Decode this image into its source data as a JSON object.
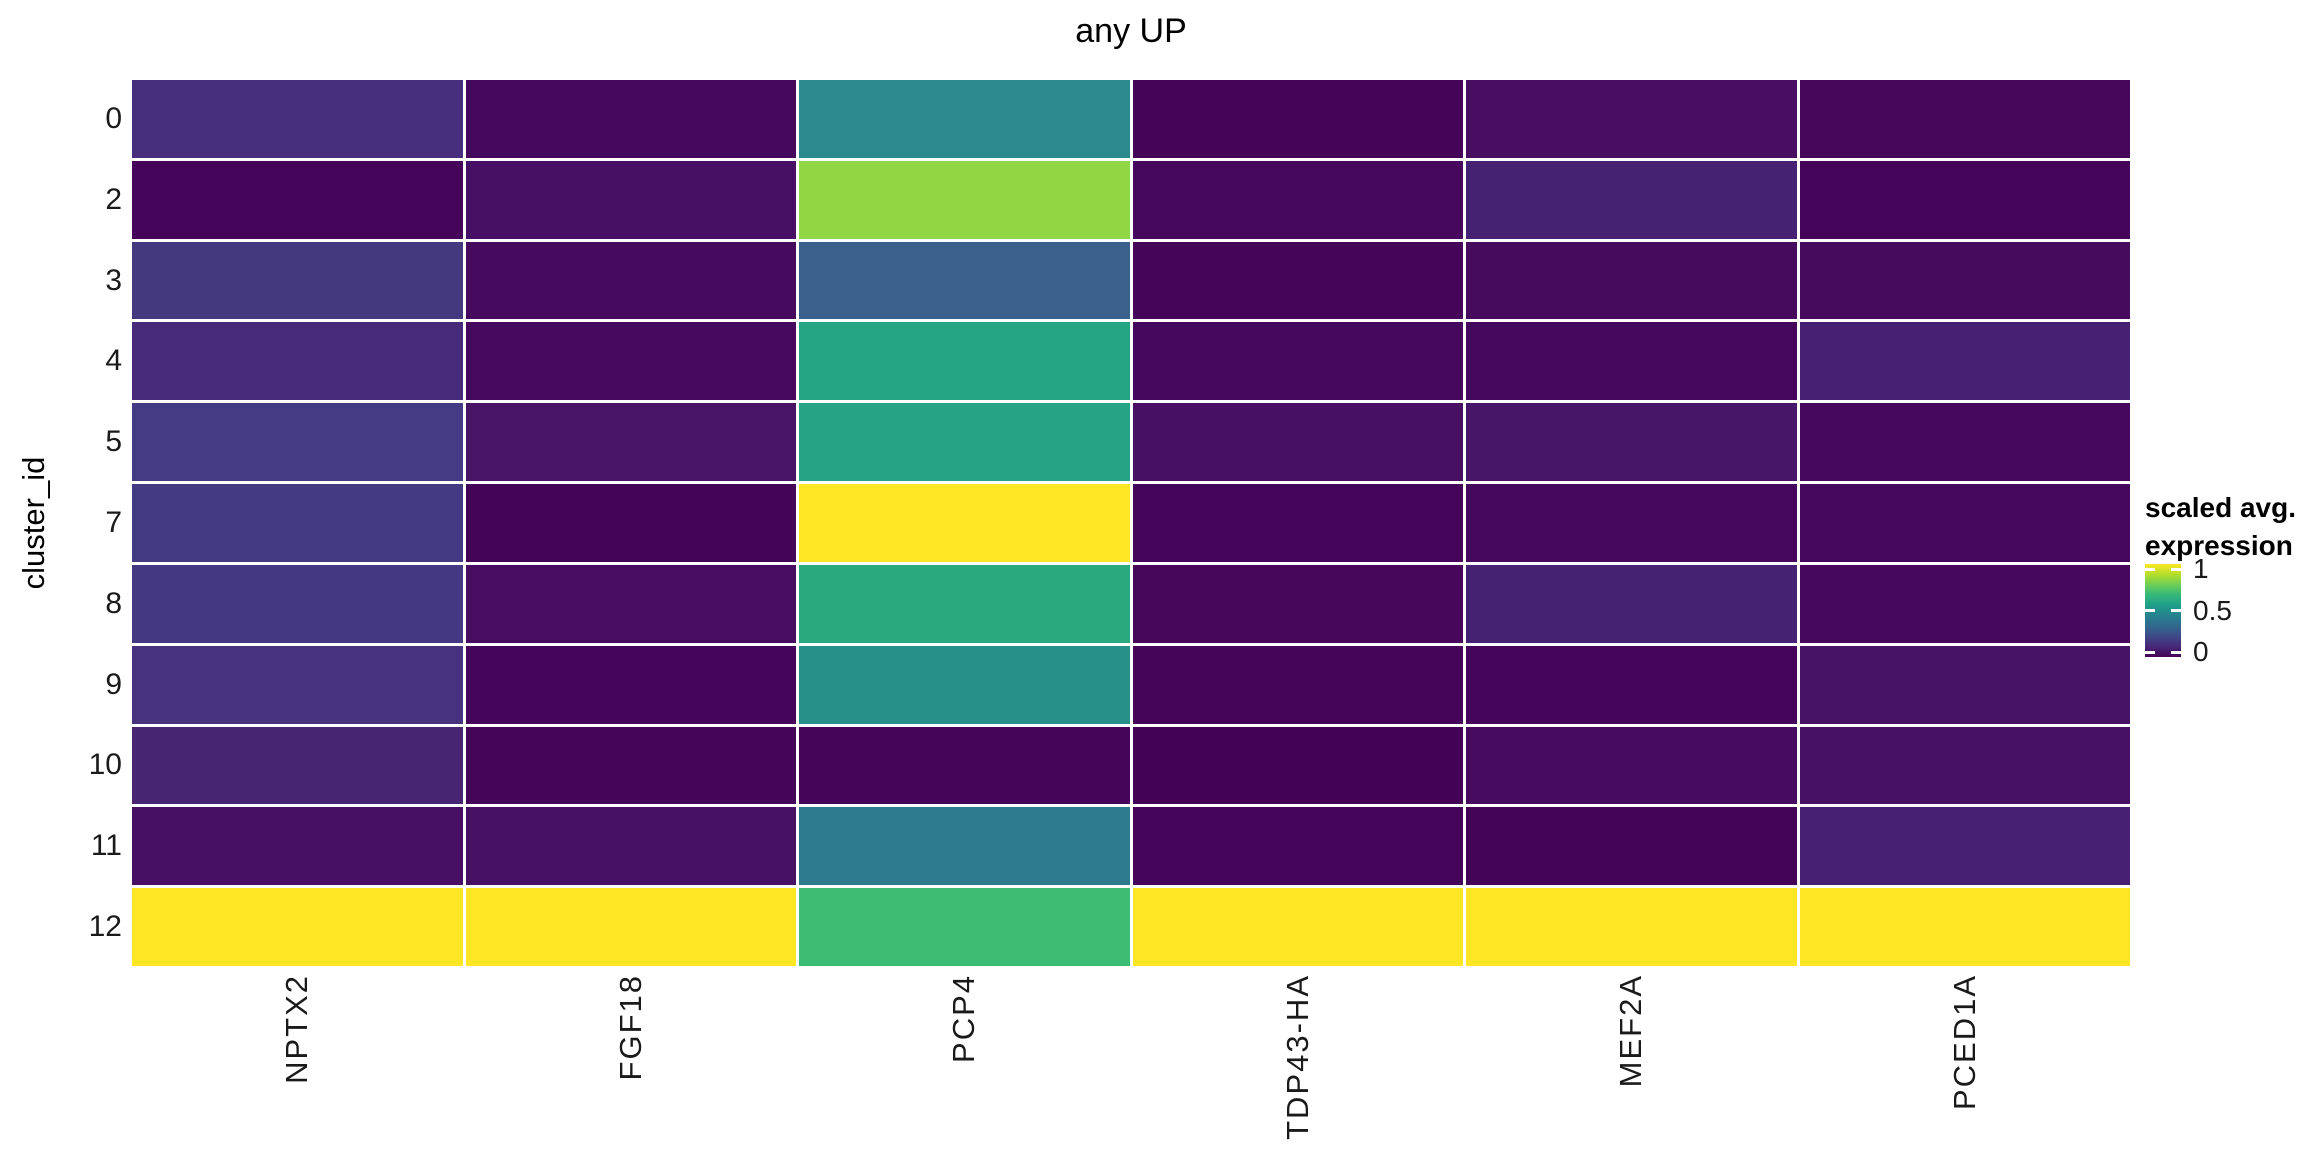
{
  "title": "any UP",
  "y_axis": {
    "label": "cluster_id"
  },
  "legend": {
    "title_line1": "scaled avg.",
    "title_line2": "expression",
    "ticks": [
      {
        "label": "1",
        "value": 1.0
      },
      {
        "label": "0.5",
        "value": 0.5
      },
      {
        "label": "0",
        "value": 0.0
      }
    ]
  },
  "chart_data": {
    "type": "heatmap",
    "title": "any UP",
    "ylabel": "cluster_id",
    "xlabel": "",
    "legend_title": "scaled avg. expression",
    "value_range": [
      0,
      1
    ],
    "grid": "off",
    "legend_position": "right",
    "rows": [
      "0",
      "2",
      "3",
      "4",
      "5",
      "7",
      "8",
      "9",
      "10",
      "11",
      "12"
    ],
    "columns": [
      "NPTX2",
      "FGF18",
      "PCP4",
      "TDP43-HA",
      "MEF2A",
      "PCED1A"
    ],
    "values": [
      [
        0.21,
        0.04,
        0.46,
        0.02,
        0.06,
        0.035
      ],
      [
        0.02,
        0.07,
        0.82,
        0.04,
        0.15,
        0.025
      ],
      [
        0.26,
        0.05,
        0.31,
        0.03,
        0.05,
        0.05
      ],
      [
        0.18,
        0.045,
        0.6,
        0.04,
        0.04,
        0.15
      ],
      [
        0.28,
        0.085,
        0.6,
        0.065,
        0.09,
        0.04
      ],
      [
        0.27,
        0.02,
        1.0,
        0.025,
        0.04,
        0.04
      ],
      [
        0.25,
        0.06,
        0.62,
        0.035,
        0.15,
        0.04
      ],
      [
        0.23,
        0.025,
        0.51,
        0.03,
        0.025,
        0.08
      ],
      [
        0.16,
        0.025,
        0.03,
        0.01,
        0.05,
        0.075
      ],
      [
        0.07,
        0.075,
        0.4,
        0.025,
        0.015,
        0.14
      ],
      [
        1.0,
        1.0,
        0.68,
        1.0,
        1.0,
        1.0
      ]
    ],
    "cell_colors": [
      [
        "#472f7d",
        "#46085c",
        "#2a8a8d",
        "#450458",
        "#470e61",
        "#46075b"
      ],
      [
        "#45055a",
        "#471064",
        "#90d743",
        "#46085c",
        "#462273",
        "#45055a"
      ],
      [
        "#44397f",
        "#460a5e",
        "#3a608c",
        "#45065a",
        "#470b5e",
        "#470b5e"
      ],
      [
        "#472a7a",
        "#46095d",
        "#26a585",
        "#46085c",
        "#46085c",
        "#462173"
      ],
      [
        "#443b84",
        "#481566",
        "#26a385",
        "#471063",
        "#481668",
        "#46085c"
      ],
      [
        "#443a83",
        "#440458",
        "#fde725",
        "#45055a",
        "#46085c",
        "#46085c"
      ],
      [
        "#453882",
        "#470d60",
        "#2aa87e",
        "#46075b",
        "#462273",
        "#46085c"
      ],
      [
        "#46327e",
        "#45055a",
        "#279189",
        "#45065a",
        "#45055a",
        "#471365"
      ],
      [
        "#482573",
        "#450559",
        "#45065a",
        "#440256",
        "#470c5f",
        "#471264"
      ],
      [
        "#471064",
        "#471264",
        "#2f7b8e",
        "#45055a",
        "#440457",
        "#472073"
      ],
      [
        "#fde725",
        "#fde725",
        "#3dbc74",
        "#fde725",
        "#fde725",
        "#fde725"
      ]
    ],
    "colormap": "viridis",
    "colormap_stops": [
      "#440154",
      "#482878",
      "#3e4989",
      "#31688e",
      "#26828e",
      "#1f9e89",
      "#35b779",
      "#6ece58",
      "#b5de2b",
      "#fde725"
    ]
  }
}
